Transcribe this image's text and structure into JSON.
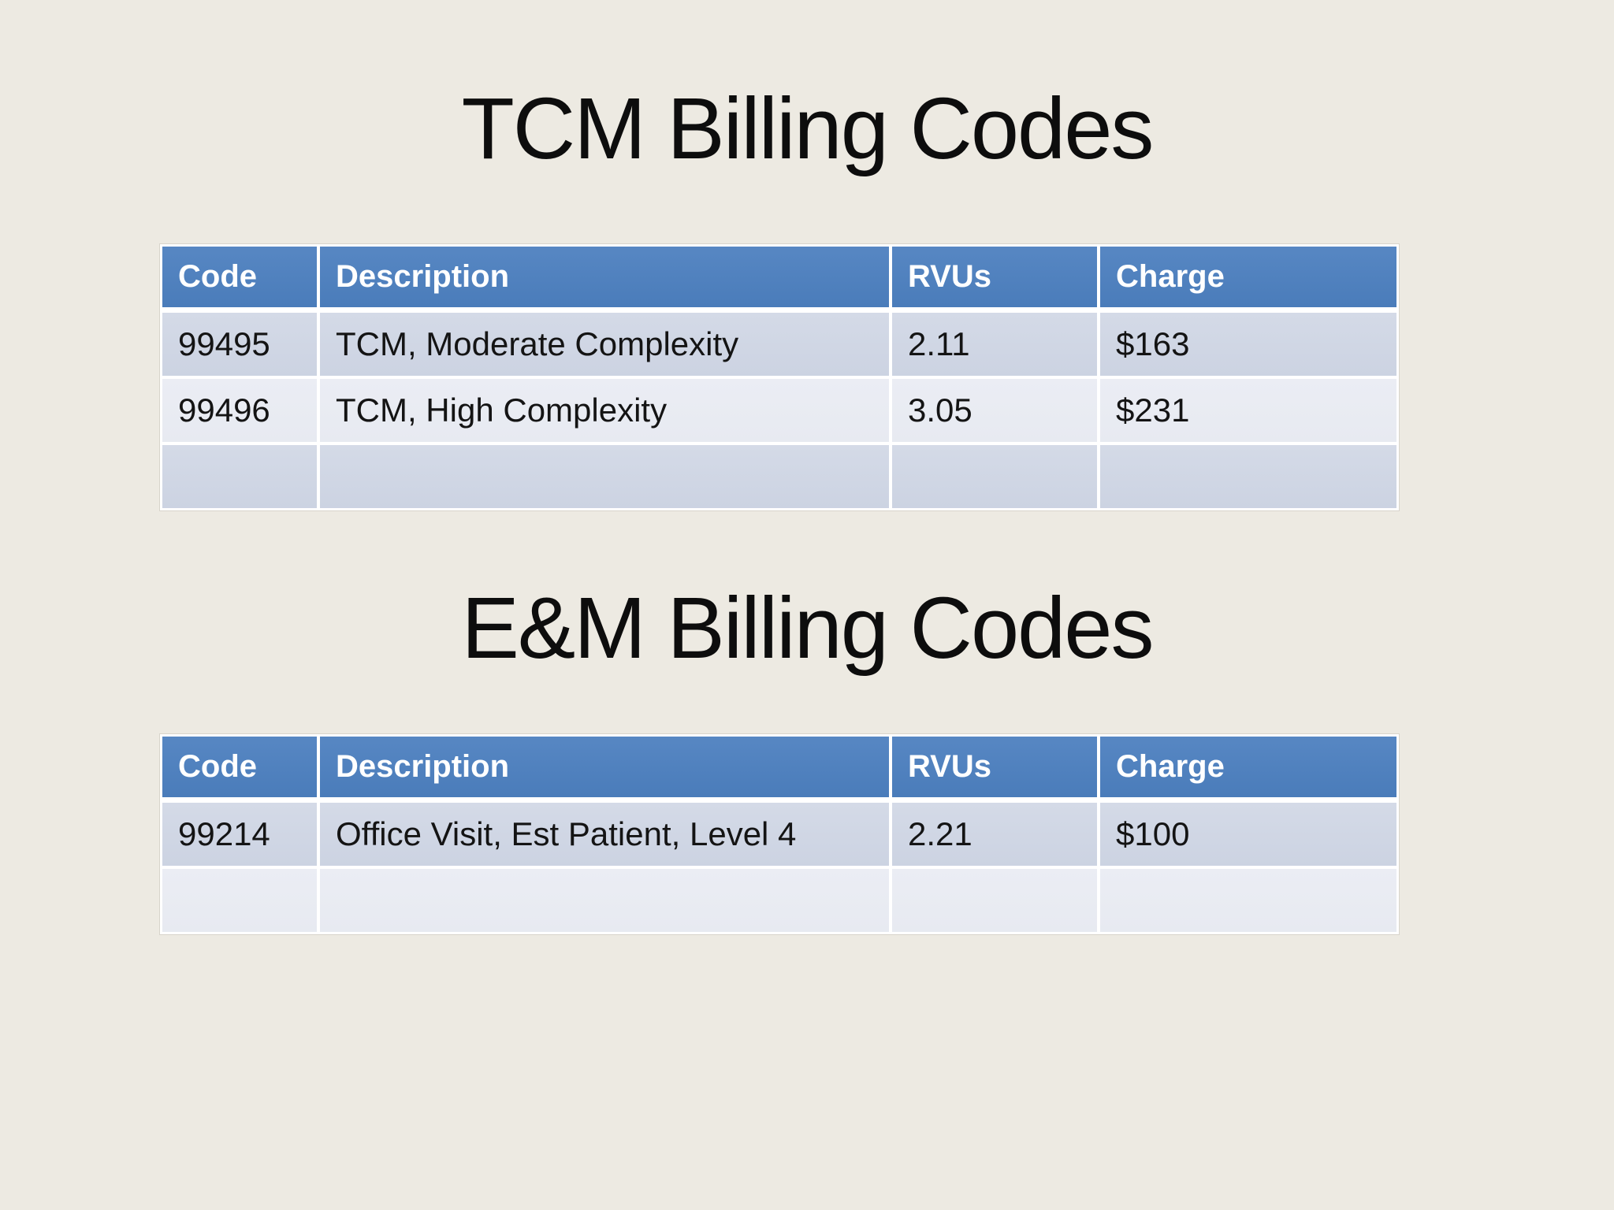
{
  "slide": {
    "background_color": "#EDEAE2",
    "accent_color": "#4F81BD",
    "row_band_dark_color": "#D0D6E4",
    "row_band_light_color": "#E9EBF2",
    "sections": [
      {
        "title": "TCM Billing Codes",
        "table": {
          "columns": [
            "Code",
            "Description",
            "RVUs",
            "Charge"
          ],
          "rows": [
            [
              "99495",
              "TCM, Moderate Complexity",
              "2.11",
              "$163"
            ],
            [
              "99496",
              "TCM, High Complexity",
              "3.05",
              "$231"
            ],
            [
              "",
              "",
              "",
              ""
            ]
          ]
        }
      },
      {
        "title": "E&M Billing Codes",
        "table": {
          "columns": [
            "Code",
            "Description",
            "RVUs",
            "Charge"
          ],
          "rows": [
            [
              "99214",
              "Office Visit, Est Patient, Level 4",
              "2.21",
              "$100"
            ],
            [
              "",
              "",
              "",
              ""
            ]
          ]
        }
      }
    ]
  },
  "chart_data": {
    "type": "table",
    "tables": [
      {
        "title": "TCM Billing Codes",
        "columns": [
          "Code",
          "Description",
          "RVUs",
          "Charge"
        ],
        "rows": [
          {
            "code": "99495",
            "description": "TCM, Moderate Complexity",
            "rvus": 2.11,
            "charge": "$163"
          },
          {
            "code": "99496",
            "description": "TCM, High Complexity",
            "rvus": 3.05,
            "charge": "$231"
          }
        ]
      },
      {
        "title": "E&M Billing Codes",
        "columns": [
          "Code",
          "Description",
          "RVUs",
          "Charge"
        ],
        "rows": [
          {
            "code": "99214",
            "description": "Office Visit, Est Patient, Level 4",
            "rvus": 2.21,
            "charge": "$100"
          }
        ]
      }
    ]
  }
}
